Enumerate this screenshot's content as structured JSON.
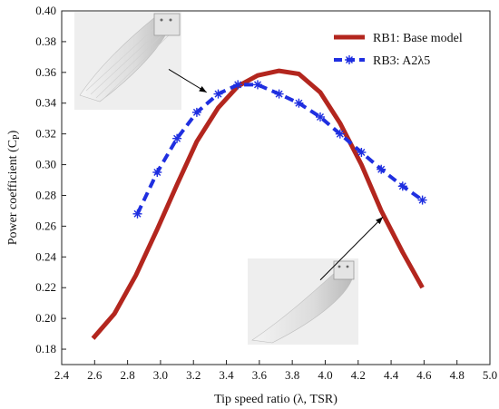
{
  "chart_data": {
    "type": "line",
    "xlabel": "Tip speed ratio (λ, TSR)",
    "ylabel_main": "Power coefficient (C",
    "ylabel_sub": "P",
    "ylabel_close": ")",
    "xlim": [
      2.4,
      5.0
    ],
    "ylim": [
      0.17,
      0.4
    ],
    "xticks": [
      "2.4",
      "2.6",
      "2.8",
      "3.0",
      "3.2",
      "3.4",
      "3.6",
      "3.8",
      "4.0",
      "4.2",
      "4.4",
      "4.6",
      "4.8",
      "5.0"
    ],
    "yticks": [
      "0.18",
      "0.20",
      "0.22",
      "0.24",
      "0.26",
      "0.28",
      "0.30",
      "0.32",
      "0.34",
      "0.36",
      "0.38",
      "0.40"
    ],
    "legend_position": "top-right",
    "grid": false,
    "series": [
      {
        "name": "RB1: Base model",
        "color": "#b3261e",
        "style": "solid",
        "x": [
          2.59,
          2.72,
          2.85,
          2.98,
          3.1,
          3.22,
          3.35,
          3.47,
          3.59,
          3.72,
          3.84,
          3.97,
          4.09,
          4.22,
          4.34,
          4.47,
          4.59
        ],
        "y": [
          0.187,
          0.203,
          0.228,
          0.258,
          0.287,
          0.315,
          0.337,
          0.351,
          0.358,
          0.361,
          0.359,
          0.347,
          0.327,
          0.3,
          0.27,
          0.243,
          0.22
        ]
      },
      {
        "name": "RB3: A2λ5",
        "color": "#1f2fe0",
        "style": "dashed",
        "marker": "asterisk",
        "x": [
          2.86,
          2.98,
          3.1,
          3.22,
          3.35,
          3.47,
          3.59,
          3.72,
          3.84,
          3.97,
          4.09,
          4.22,
          4.34,
          4.47,
          4.59
        ],
        "y": [
          0.268,
          0.295,
          0.317,
          0.334,
          0.346,
          0.352,
          0.352,
          0.346,
          0.34,
          0.331,
          0.32,
          0.308,
          0.297,
          0.286,
          0.277
        ]
      }
    ],
    "annotations": [
      {
        "kind": "arrow",
        "from": [
          3.05,
          0.362
        ],
        "to": [
          3.28,
          0.347
        ],
        "points_to": "RB3: A2λ5"
      },
      {
        "kind": "arrow",
        "from": [
          3.97,
          0.225
        ],
        "to": [
          4.35,
          0.266
        ],
        "points_to": "RB1: Base model"
      }
    ],
    "images": [
      {
        "name": "blade-render-rb3",
        "anchor": "top-left"
      },
      {
        "name": "blade-render-rb1",
        "anchor": "bottom-right"
      }
    ]
  }
}
